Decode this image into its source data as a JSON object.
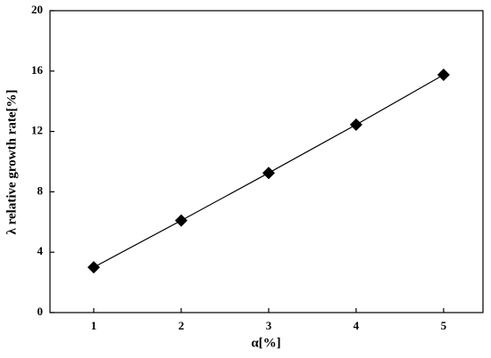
{
  "chart_data": {
    "type": "line",
    "x_label": "α[%]",
    "y_label": "λ relative growth rate[%]",
    "x": [
      1,
      2,
      3,
      4,
      5
    ],
    "series": [
      {
        "name": "λ",
        "color": "#000000",
        "values": [
          3.0,
          6.1,
          9.25,
          12.45,
          15.75
        ]
      }
    ],
    "xlim": [
      0.5,
      5.45
    ],
    "xticks": [
      1,
      2,
      3,
      4,
      5
    ],
    "ylim": [
      0,
      20
    ],
    "yticks": [
      0,
      4,
      8,
      12,
      16,
      20
    ],
    "marker": "diamond",
    "legend": false
  }
}
